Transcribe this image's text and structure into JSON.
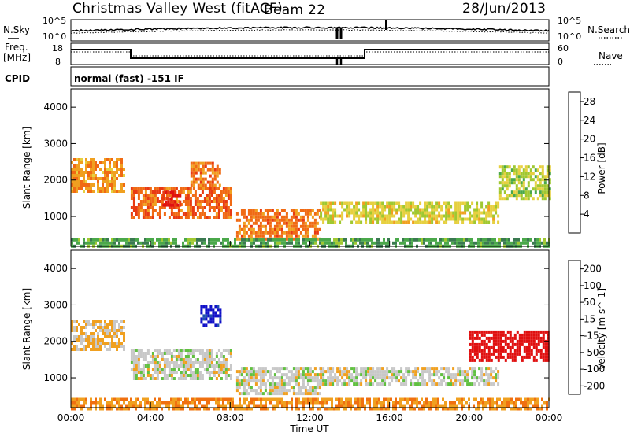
{
  "header": {
    "title": "Christmas Valley West (fitACF)",
    "beam": "Beam 22",
    "date": "28/Jun/2013"
  },
  "panels": {
    "nsky_label": "N.Sky",
    "nsearch_label": "N.Search",
    "nsky_ticks": [
      "10^5",
      "10^0"
    ],
    "nsearch_ticks": [
      "10^5",
      "10^0"
    ],
    "freq_label_1": "Freq.",
    "freq_label_2": "[MHz]",
    "freq_ticks": [
      "18",
      "8"
    ],
    "nave_label": "Nave",
    "nave_ticks": [
      "60",
      "0"
    ],
    "cpid_label": "CPID",
    "cpid_text": "normal (fast) -151 IF"
  },
  "axes": {
    "xlabel": "Time UT",
    "ylabel": "Slant Range [km]",
    "xticks": [
      "00:00",
      "04:00",
      "08:00",
      "12:00",
      "16:00",
      "20:00",
      "00:00"
    ],
    "yticks": [
      "1000",
      "2000",
      "3000",
      "4000"
    ]
  },
  "colorbars": {
    "power": {
      "label": "Power [dB]",
      "ticks": [
        "4",
        "8",
        "12",
        "16",
        "20",
        "24",
        "28"
      ],
      "colors": [
        "#1010e0",
        "#2040a8",
        "#3a7a50",
        "#4aa84a",
        "#a0c830",
        "#e6d040",
        "#f0a020",
        "#f06a14",
        "#e83a12",
        "#e01010"
      ]
    },
    "velocity": {
      "label": "Velocity [m s^-1]",
      "ticks": [
        "200",
        "100",
        "50",
        "15",
        "-15",
        "-50",
        "-100",
        "-200"
      ],
      "colors": [
        "#1010c8",
        "#2050b0",
        "#208040",
        "#60c040",
        "#c8c8c8",
        "#f0a020",
        "#f07010",
        "#f04010",
        "#e01010"
      ]
    }
  },
  "chart_data": [
    {
      "type": "heatmap",
      "title": "Power",
      "xlabel": "Time UT",
      "ylabel": "Slant Range [km]",
      "xlim": [
        0,
        24
      ],
      "ylim": [
        180,
        4500
      ],
      "colorbar_label": "Power [dB]",
      "colorbar_range": [
        0,
        30
      ],
      "regions": [
        {
          "t": [
            0.0,
            2.7
          ],
          "range": [
            1700,
            2600
          ],
          "value": 20
        },
        {
          "t": [
            3.0,
            8.0
          ],
          "range": [
            950,
            1800
          ],
          "value": 23
        },
        {
          "t": [
            4.6,
            5.5
          ],
          "range": [
            1300,
            1700
          ],
          "value": 27
        },
        {
          "t": [
            6.0,
            7.5
          ],
          "range": [
            1750,
            2500
          ],
          "value": 22
        },
        {
          "t": [
            8.3,
            12.5
          ],
          "range": [
            400,
            1200
          ],
          "value": 22
        },
        {
          "t": [
            12.5,
            21.5
          ],
          "range": [
            800,
            1400
          ],
          "value": 16
        },
        {
          "t": [
            21.5,
            24.0
          ],
          "range": [
            1500,
            2400
          ],
          "value": 14
        },
        {
          "t": [
            0.0,
            24.0
          ],
          "range": [
            180,
            400
          ],
          "value": 10
        }
      ]
    },
    {
      "type": "heatmap",
      "title": "Velocity",
      "xlabel": "Time UT",
      "ylabel": "Slant Range [km]",
      "xlim": [
        0,
        24
      ],
      "ylim": [
        180,
        4500
      ],
      "colorbar_label": "Velocity [m s^-1]",
      "colorbar_range": [
        -200,
        200
      ],
      "regions": [
        {
          "t": [
            0.0,
            2.7
          ],
          "range": [
            1800,
            2600
          ],
          "value": -30
        },
        {
          "t": [
            3.0,
            8.0
          ],
          "range": [
            1000,
            1800
          ],
          "value": 0
        },
        {
          "t": [
            6.5,
            7.5
          ],
          "range": [
            2400,
            3000
          ],
          "value": 180
        },
        {
          "t": [
            8.3,
            12.5
          ],
          "range": [
            600,
            1300
          ],
          "value": 0
        },
        {
          "t": [
            12.5,
            21.5
          ],
          "range": [
            800,
            1300
          ],
          "value": 0
        },
        {
          "t": [
            20.0,
            24.0
          ],
          "range": [
            1500,
            2300
          ],
          "value": -200
        },
        {
          "t": [
            0.0,
            24.0
          ],
          "range": [
            180,
            450
          ],
          "value": -60
        }
      ]
    }
  ]
}
